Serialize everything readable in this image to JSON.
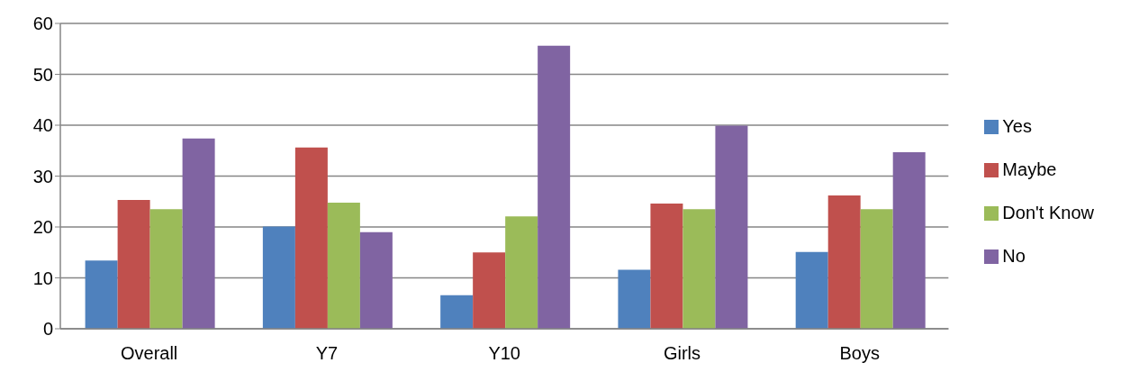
{
  "chart_data": {
    "type": "bar",
    "categories": [
      "Overall",
      "Y7",
      "Y10",
      "Girls",
      "Boys"
    ],
    "series": [
      {
        "name": "Yes",
        "color": "#4f81bd",
        "values": [
          13.4,
          20.1,
          6.6,
          11.6,
          15.1
        ]
      },
      {
        "name": "Maybe",
        "color": "#c0504d",
        "values": [
          25.3,
          35.6,
          15.0,
          24.6,
          26.2
        ]
      },
      {
        "name": "Don't Know",
        "color": "#9bbb59",
        "values": [
          23.5,
          24.8,
          22.1,
          23.5,
          23.5
        ]
      },
      {
        "name": "No",
        "color": "#8064a2",
        "values": [
          37.4,
          19.0,
          55.6,
          39.9,
          34.7
        ]
      }
    ],
    "ylim": [
      0,
      60
    ],
    "yticks": [
      0,
      10,
      20,
      30,
      40,
      50,
      60
    ],
    "grid": "y",
    "legend": "right"
  }
}
